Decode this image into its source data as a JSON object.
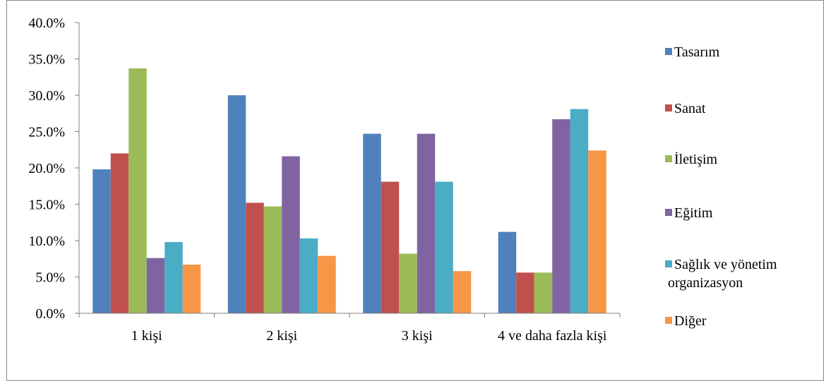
{
  "chart_data": {
    "type": "bar",
    "title": "",
    "xlabel": "",
    "ylabel": "",
    "categories": [
      "1 kişi",
      "2 kişi",
      "3 kişi",
      "4 ve daha fazla kişi"
    ],
    "ylim": [
      0,
      40
    ],
    "y_ticks": [
      "0.0%",
      "5.0%",
      "10.0%",
      "15.0%",
      "20.0%",
      "25.0%",
      "30.0%",
      "35.0%",
      "40.0%"
    ],
    "grid": false,
    "legend_position": "right",
    "series": [
      {
        "name": "Tasarım",
        "color": "#4F81BD",
        "values": [
          19.8,
          30.0,
          24.7,
          11.2
        ]
      },
      {
        "name": "Sanat",
        "color": "#C0504D",
        "values": [
          22.0,
          15.2,
          18.1,
          5.6
        ]
      },
      {
        "name": "İletişim",
        "color": "#9BBB59",
        "values": [
          33.7,
          14.7,
          8.2,
          5.6
        ]
      },
      {
        "name": "Eğitim",
        "color": "#8064A2",
        "values": [
          7.6,
          21.6,
          24.7,
          26.7
        ]
      },
      {
        "name": "Sağlık ve yönetim organizasyon",
        "color": "#4BACC6",
        "values": [
          9.8,
          10.3,
          18.1,
          28.1
        ]
      },
      {
        "name": "Diğer",
        "color": "#F79646",
        "values": [
          6.7,
          7.9,
          5.8,
          22.4
        ]
      }
    ]
  }
}
